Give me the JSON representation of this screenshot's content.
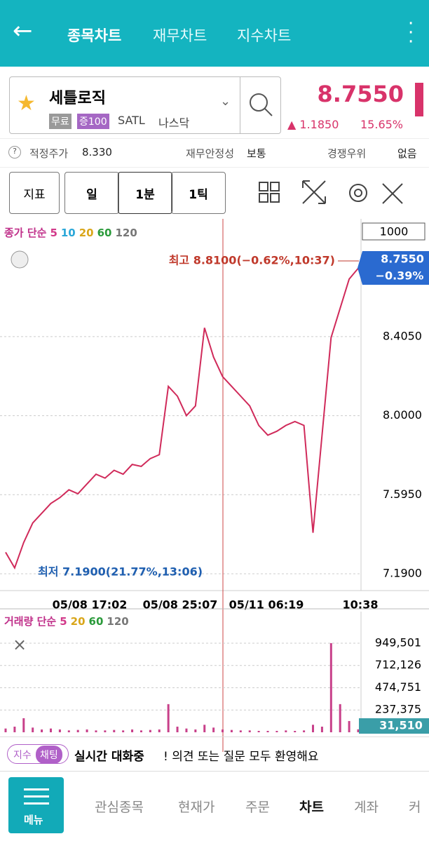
{
  "header": {
    "tabs": [
      "종목차트",
      "재무차트",
      "지수차트"
    ]
  },
  "stock": {
    "name": "세틀로직",
    "tags": [
      "무료",
      "증100"
    ],
    "ticker": "SATL",
    "market": "나스닥",
    "price": "8.7550",
    "change": "▲ 1.1850",
    "change_pct": "15.65%"
  },
  "info": {
    "fair_label": "적정주가",
    "fair_value": "8.330",
    "stability_label": "재무안정성",
    "stability_value": "보통",
    "competition_label": "경쟁우위",
    "competition_value": "없음"
  },
  "toolbar": {
    "indicator": "지표",
    "periods": [
      "일",
      "1분",
      "1틱"
    ]
  },
  "chart_data": [
    {
      "type": "line",
      "legend_title": "종가 단순",
      "ma": [
        "5",
        "10",
        "20",
        "60",
        "120"
      ],
      "count": "1000",
      "high_label": "최고 8.8100(−0.62%,10:37)",
      "low_label": "최저 7.1900(21.77%,13:06)",
      "current": "8.7550",
      "current_pct": "−0.39%",
      "x_labels": [
        "05/08 17:02",
        "05/08 25:07",
        "05/11 06:19",
        "10:38"
      ],
      "color": "#d02a5a",
      "values": [
        7.3,
        7.22,
        7.35,
        7.45,
        7.5,
        7.55,
        7.58,
        7.62,
        7.6,
        7.65,
        7.7,
        7.68,
        7.72,
        7.7,
        7.75,
        7.74,
        7.78,
        7.8,
        8.15,
        8.1,
        8.0,
        8.05,
        8.45,
        8.3,
        8.2,
        8.15,
        8.1,
        8.05,
        7.95,
        7.9,
        7.92,
        7.95,
        7.97,
        7.95,
        7.4,
        7.9,
        8.4,
        8.55,
        8.7,
        8.755
      ],
      "ylim": [
        7.118,
        8.994
      ],
      "yticks": [
        {
          "value": 8.405,
          "label": "8.4050"
        },
        {
          "value": 8.0,
          "label": "8.0000"
        },
        {
          "value": 7.595,
          "label": "7.5950"
        },
        {
          "value": 7.19,
          "label": "7.1900"
        }
      ],
      "grid": true
    },
    {
      "type": "bar",
      "legend_title": "거래량 단순",
      "ma": [
        "5",
        "20",
        "60",
        "120"
      ],
      "current": "31,510",
      "color": "#c8408a",
      "values": [
        40000,
        60000,
        150000,
        50000,
        30000,
        40000,
        30000,
        20000,
        25000,
        30000,
        20000,
        20000,
        25000,
        20000,
        30000,
        20000,
        25000,
        30000,
        300000,
        60000,
        40000,
        30000,
        80000,
        50000,
        30000,
        25000,
        20000,
        20000,
        15000,
        15000,
        15000,
        20000,
        15000,
        20000,
        80000,
        60000,
        950000,
        300000,
        120000,
        31510
      ],
      "ylim": [
        0,
        1211000
      ],
      "yticks": [
        {
          "value": 949501,
          "label": "949,501"
        },
        {
          "value": 712126,
          "label": "712,126"
        },
        {
          "value": 474751,
          "label": "474,751"
        },
        {
          "value": 237375,
          "label": "237,375"
        }
      ],
      "grid": true
    }
  ],
  "chat": {
    "badge_left": "지수",
    "badge_right": "채팅",
    "bold": "실시간 대화중",
    "text": "! 의견 또는 질문 모두 환영해요"
  },
  "nav": {
    "menu": "메뉴",
    "items": [
      "관심종목",
      "현재가",
      "주문",
      "차트",
      "계좌",
      "커"
    ]
  }
}
